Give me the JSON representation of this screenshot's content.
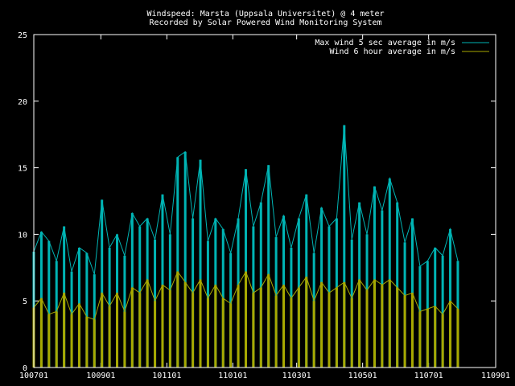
{
  "chart_data": {
    "type": "line",
    "title": "Windspeed: Marsta (Uppsala Universitet) @ 4 meter",
    "subtitle": "Recorded by Solar Powered Wind Monitoring System",
    "xlabel": "",
    "ylabel": "",
    "ylim": [
      0,
      25
    ],
    "yticks": [
      0,
      5,
      10,
      15,
      20,
      25
    ],
    "xlim": [
      "2010-07-01",
      "2011-09-01"
    ],
    "xticks": [
      "100701",
      "100901",
      "101101",
      "110101",
      "110301",
      "110501",
      "110701",
      "110901"
    ],
    "xtick_dates": [
      "2010-07-01",
      "2010-09-01",
      "2010-11-01",
      "2011-01-01",
      "2011-03-01",
      "2011-05-01",
      "2011-07-01",
      "2011-09-01"
    ],
    "legend_position": "top-right",
    "grid": false,
    "x": [
      "2010-07-01",
      "2010-07-08",
      "2010-07-15",
      "2010-07-22",
      "2010-07-29",
      "2010-08-05",
      "2010-08-12",
      "2010-08-19",
      "2010-08-26",
      "2010-09-02",
      "2010-09-09",
      "2010-09-16",
      "2010-09-23",
      "2010-09-30",
      "2010-10-07",
      "2010-10-14",
      "2010-10-21",
      "2010-10-28",
      "2010-11-04",
      "2010-11-11",
      "2010-11-18",
      "2010-11-25",
      "2010-12-02",
      "2010-12-09",
      "2010-12-16",
      "2010-12-23",
      "2010-12-30",
      "2011-01-06",
      "2011-01-13",
      "2011-01-20",
      "2011-01-27",
      "2011-02-03",
      "2011-02-10",
      "2011-02-17",
      "2011-02-24",
      "2011-03-03",
      "2011-03-10",
      "2011-03-17",
      "2011-03-24",
      "2011-03-31",
      "2011-04-07",
      "2011-04-14",
      "2011-04-21",
      "2011-04-28",
      "2011-05-05",
      "2011-05-12",
      "2011-05-19",
      "2011-05-26",
      "2011-06-02",
      "2011-06-09",
      "2011-06-16",
      "2011-06-23",
      "2011-06-30",
      "2011-07-07",
      "2011-07-14",
      "2011-07-21",
      "2011-07-28"
    ],
    "series": [
      {
        "name": "Max wind 5 sec average in m/s",
        "color": "#00b4b4",
        "values": [
          8.7,
          10.2,
          9.5,
          8.0,
          10.6,
          7.2,
          9.0,
          8.6,
          7.0,
          12.6,
          9.0,
          10.0,
          8.4,
          11.6,
          10.6,
          11.2,
          9.6,
          13.0,
          10.0,
          15.8,
          16.2,
          11.2,
          15.6,
          9.5,
          11.2,
          10.4,
          8.6,
          11.2,
          14.9,
          10.6,
          12.4,
          15.2,
          9.8,
          11.4,
          9.0,
          11.2,
          13.0,
          8.6,
          12.0,
          10.6,
          11.2,
          18.2,
          9.6,
          12.4,
          10.0,
          13.6,
          11.8,
          14.2,
          12.4,
          9.4,
          11.2,
          7.6,
          8.0,
          9.0,
          8.4,
          10.4,
          8.0
        ]
      },
      {
        "name": "Wind 6 hour average in m/s",
        "color": "#a8a800",
        "values": [
          4.5,
          5.2,
          4.0,
          4.2,
          5.6,
          4.0,
          4.8,
          3.8,
          3.6,
          5.6,
          4.6,
          5.6,
          4.2,
          6.0,
          5.6,
          6.6,
          5.0,
          6.2,
          5.8,
          7.2,
          6.4,
          5.6,
          6.6,
          5.2,
          6.2,
          5.2,
          4.8,
          6.2,
          7.2,
          5.6,
          6.0,
          7.0,
          5.4,
          6.2,
          5.2,
          6.0,
          6.8,
          5.0,
          6.4,
          5.6,
          6.0,
          6.4,
          5.2,
          6.6,
          5.8,
          6.6,
          6.2,
          6.6,
          6.0,
          5.4,
          5.6,
          4.2,
          4.4,
          4.6,
          4.0,
          5.0,
          4.4
        ]
      }
    ]
  }
}
